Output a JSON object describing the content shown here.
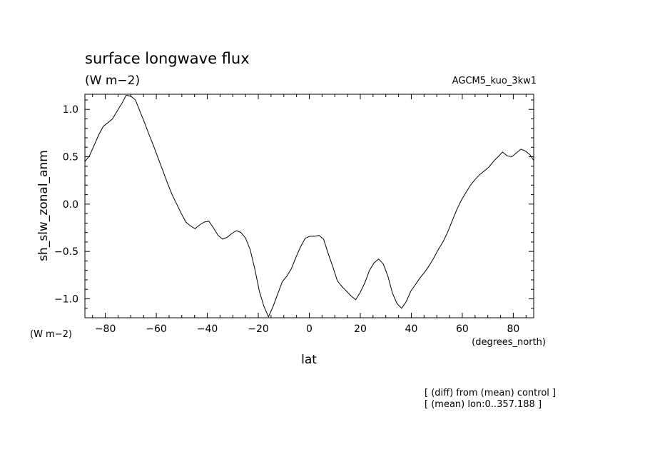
{
  "chart_data": {
    "type": "line",
    "title": "surface longwave flux",
    "units_label": "(W m−2)",
    "run_label": "AGCM5_kuo_3kw1",
    "ylabel": "sh_slw_zonal_anm",
    "xlabel": "lat",
    "xunits_label": "(degrees_north)",
    "yunits_label": "(W m−2)",
    "notes": [
      "[ (diff) from (mean) control ]",
      "[ (mean) lon:0..357.188 ]"
    ],
    "xlim": [
      -88,
      88
    ],
    "ylim": [
      -1.2,
      1.16
    ],
    "xticks": [
      -80,
      -60,
      -40,
      -20,
      0,
      20,
      40,
      60,
      80
    ],
    "xtick_labels": [
      "−80",
      "−60",
      "−40",
      "−20",
      "0",
      "20",
      "40",
      "60",
      "80"
    ],
    "yticks": [
      1.0,
      0.5,
      0.0,
      -0.5,
      -1.0
    ],
    "ytick_labels": [
      "1.0",
      "0.5",
      "0.0",
      "−0.5",
      "−1.0"
    ],
    "grid": false,
    "series": [
      {
        "x": [
          -88.0,
          -86.2,
          -84.4,
          -82.6,
          -80.8,
          -79.0,
          -77.2,
          -75.4,
          -73.6,
          -71.8,
          -70.0,
          -68.2,
          -66.4,
          -64.6,
          -62.8,
          -61.0,
          -59.2,
          -57.4,
          -55.6,
          -53.8,
          -52.0,
          -50.2,
          -48.4,
          -46.6,
          -44.8,
          -43.0,
          -41.2,
          -39.4,
          -37.6,
          -35.8,
          -34.0,
          -32.2,
          -30.4,
          -28.6,
          -26.8,
          -25.0,
          -23.2,
          -21.4,
          -19.6,
          -17.8,
          -16.0,
          -14.2,
          -12.4,
          -10.6,
          -8.8,
          -7.0,
          -5.2,
          -3.4,
          -1.6,
          0.2,
          2.0,
          3.8,
          5.6,
          7.4,
          9.2,
          11.0,
          12.8,
          14.6,
          16.4,
          18.2,
          20.0,
          21.8,
          23.6,
          25.4,
          27.2,
          29.0,
          30.8,
          32.6,
          34.4,
          36.2,
          38.0,
          39.8,
          41.6,
          43.4,
          45.2,
          47.0,
          48.8,
          50.6,
          52.4,
          54.2,
          56.0,
          57.8,
          59.6,
          61.4,
          63.2,
          65.0,
          66.8,
          68.6,
          70.4,
          72.2,
          74.0,
          75.8,
          77.6,
          79.4,
          81.2,
          83.0,
          84.8,
          86.6,
          88.0
        ],
        "values": [
          0.45,
          0.51,
          0.62,
          0.73,
          0.82,
          0.86,
          0.9,
          0.98,
          1.06,
          1.15,
          1.14,
          1.1,
          0.98,
          0.86,
          0.73,
          0.61,
          0.48,
          0.35,
          0.22,
          0.1,
          0.0,
          -0.1,
          -0.19,
          -0.23,
          -0.26,
          -0.22,
          -0.19,
          -0.18,
          -0.25,
          -0.33,
          -0.37,
          -0.35,
          -0.31,
          -0.28,
          -0.3,
          -0.36,
          -0.48,
          -0.68,
          -0.92,
          -1.08,
          -1.19,
          -1.08,
          -0.95,
          -0.82,
          -0.76,
          -0.68,
          -0.56,
          -0.45,
          -0.36,
          -0.34,
          -0.34,
          -0.33,
          -0.37,
          -0.52,
          -0.66,
          -0.81,
          -0.87,
          -0.92,
          -0.97,
          -1.01,
          -0.93,
          -0.83,
          -0.7,
          -0.62,
          -0.58,
          -0.63,
          -0.76,
          -0.94,
          -1.05,
          -1.1,
          -1.03,
          -0.92,
          -0.85,
          -0.78,
          -0.72,
          -0.65,
          -0.57,
          -0.48,
          -0.4,
          -0.3,
          -0.18,
          -0.06,
          0.04,
          0.12,
          0.2,
          0.26,
          0.31,
          0.35,
          0.39,
          0.45,
          0.5,
          0.55,
          0.51,
          0.5,
          0.54,
          0.58,
          0.56,
          0.52,
          0.46
        ]
      }
    ]
  }
}
